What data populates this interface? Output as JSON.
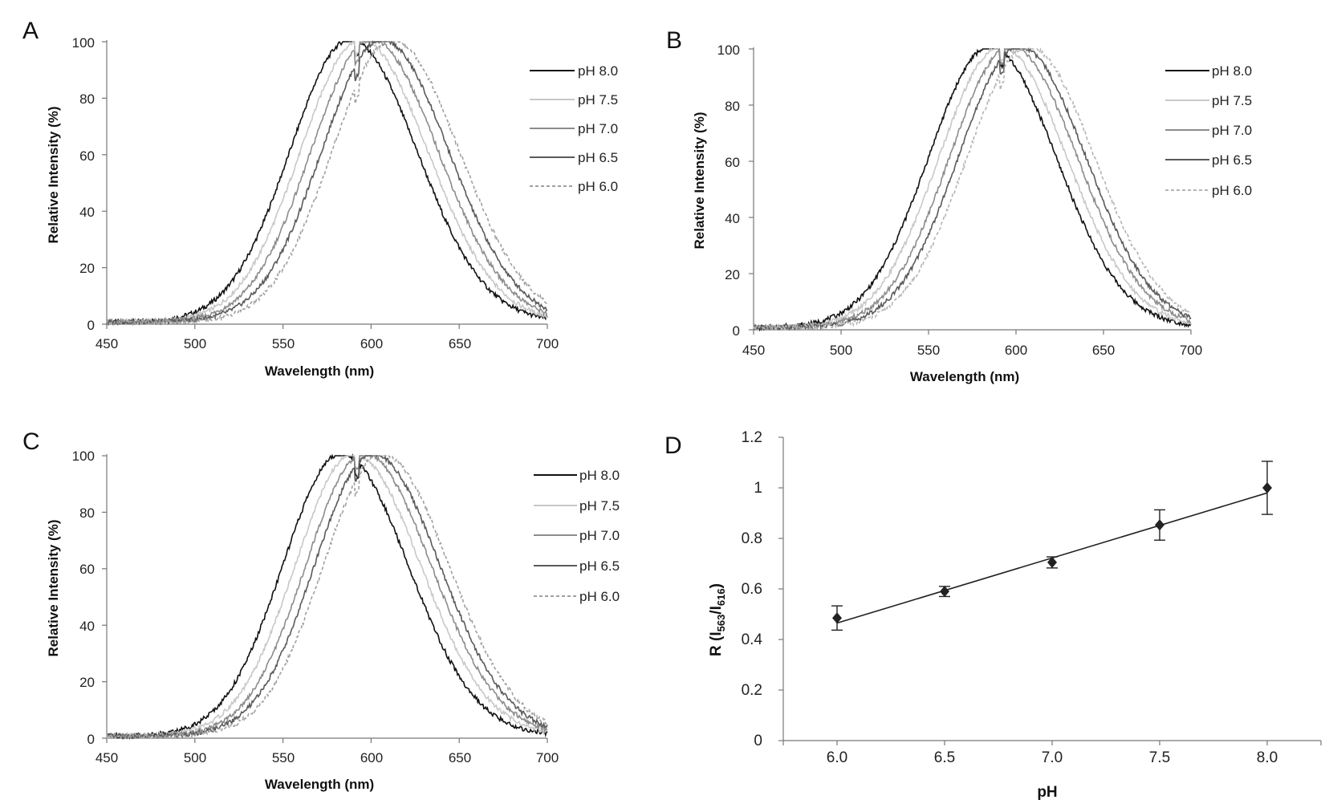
{
  "chart_data": [
    {
      "panel_label": "A",
      "type": "line",
      "xlabel": "Wavelength (nm)",
      "ylabel": "Relative Intensity (%)",
      "xlim": [
        450,
        700
      ],
      "ylim": [
        0,
        100
      ],
      "xticks": [
        "450",
        "500",
        "550",
        "600",
        "650",
        "700"
      ],
      "yticks": [
        "0",
        "20",
        "40",
        "60",
        "80",
        "100"
      ],
      "legend_position": "right",
      "series": [
        {
          "name": "pH 8.0",
          "peak_nm": 588,
          "sigma_left": 34,
          "sigma_right": 38,
          "color": "#111111",
          "dash": false
        },
        {
          "name": "pH 7.5",
          "peak_nm": 594,
          "sigma_left": 34,
          "sigma_right": 38,
          "color": "#c8c8c8",
          "dash": false
        },
        {
          "name": "pH 7.0",
          "peak_nm": 600,
          "sigma_left": 34,
          "sigma_right": 38,
          "color": "#8c8c8c",
          "dash": false
        },
        {
          "name": "pH 6.5",
          "peak_nm": 606,
          "sigma_left": 34,
          "sigma_right": 38,
          "color": "#5a5a5a",
          "dash": false
        },
        {
          "name": "pH 6.0",
          "peak_nm": 612,
          "sigma_left": 34,
          "sigma_right": 38,
          "color": "#a0a0a0",
          "dash": true
        }
      ]
    },
    {
      "panel_label": "B",
      "type": "line",
      "xlabel": "Wavelength (nm)",
      "ylabel": "Relative Intensity (%)",
      "xlim": [
        450,
        700
      ],
      "ylim": [
        0,
        100
      ],
      "xticks": [
        "450",
        "500",
        "550",
        "600",
        "650",
        "700"
      ],
      "yticks": [
        "0",
        "20",
        "40",
        "60",
        "80",
        "100"
      ],
      "legend_position": "right",
      "series": [
        {
          "name": "pH 8.0",
          "peak_nm": 585,
          "sigma_left": 35,
          "sigma_right": 38,
          "color": "#111111",
          "dash": false
        },
        {
          "name": "pH 7.5",
          "peak_nm": 591,
          "sigma_left": 35,
          "sigma_right": 38,
          "color": "#c8c8c8",
          "dash": false
        },
        {
          "name": "pH 7.0",
          "peak_nm": 597,
          "sigma_left": 35,
          "sigma_right": 38,
          "color": "#8c8c8c",
          "dash": false
        },
        {
          "name": "pH 6.5",
          "peak_nm": 602,
          "sigma_left": 35,
          "sigma_right": 38,
          "color": "#5a5a5a",
          "dash": false
        },
        {
          "name": "pH 6.0",
          "peak_nm": 607,
          "sigma_left": 35,
          "sigma_right": 38,
          "color": "#b4b4b4",
          "dash": true
        }
      ]
    },
    {
      "panel_label": "C",
      "type": "line",
      "xlabel": "Wavelength (nm)",
      "ylabel": "Relative Intensity (%)",
      "xlim": [
        450,
        700
      ],
      "ylim": [
        0,
        100
      ],
      "xticks": [
        "450",
        "500",
        "550",
        "600",
        "650",
        "700"
      ],
      "yticks": [
        "0",
        "20",
        "40",
        "60",
        "80",
        "100"
      ],
      "legend_position": "right",
      "series": [
        {
          "name": "pH 8.0",
          "peak_nm": 583,
          "sigma_left": 33,
          "sigma_right": 38,
          "color": "#111111",
          "dash": false
        },
        {
          "name": "pH 7.5",
          "peak_nm": 590,
          "sigma_left": 33,
          "sigma_right": 38,
          "color": "#c8c8c8",
          "dash": false
        },
        {
          "name": "pH 7.0",
          "peak_nm": 596,
          "sigma_left": 33,
          "sigma_right": 38,
          "color": "#8c8c8c",
          "dash": false
        },
        {
          "name": "pH 6.5",
          "peak_nm": 601,
          "sigma_left": 33,
          "sigma_right": 38,
          "color": "#5a5a5a",
          "dash": false
        },
        {
          "name": "pH 6.0",
          "peak_nm": 606,
          "sigma_left": 33,
          "sigma_right": 38,
          "color": "#a0a0a0",
          "dash": true
        }
      ]
    },
    {
      "panel_label": "D",
      "type": "scatter",
      "xlabel": "pH",
      "ylabel_main": "R (I",
      "ylabel_sub1": "563",
      "ylabel_mid": "/I",
      "ylabel_sub2": "616",
      "ylabel_end": ")",
      "xlim": [
        5.75,
        8.25
      ],
      "ylim": [
        0,
        1.2
      ],
      "xticks": [
        "6.0",
        "6.5",
        "7.0",
        "7.5",
        "8.0"
      ],
      "yticks": [
        "0",
        "0.2",
        "0.4",
        "0.6",
        "0.8",
        "1",
        "1.2"
      ],
      "x": [
        6.0,
        6.5,
        7.0,
        7.5,
        8.0
      ],
      "y": [
        0.485,
        0.59,
        0.705,
        0.853,
        1.0
      ],
      "error": [
        0.048,
        0.02,
        0.022,
        0.06,
        0.105
      ],
      "trendline": {
        "x": [
          6.0,
          8.0
        ],
        "y": [
          0.465,
          0.98
        ]
      }
    }
  ]
}
